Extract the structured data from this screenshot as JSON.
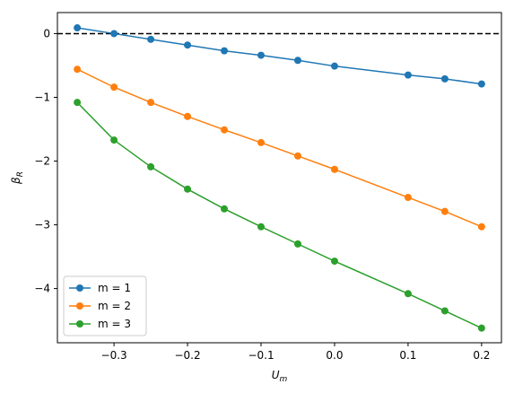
{
  "chart_data": {
    "type": "line",
    "xlabel": "U",
    "xlabel_sub": "m",
    "ylabel": "β",
    "ylabel_sub": "R",
    "xlim": [
      -0.377,
      0.227
    ],
    "ylim": [
      -4.85,
      0.33
    ],
    "xticks": [
      -0.3,
      -0.2,
      -0.1,
      0.0,
      0.1,
      0.2
    ],
    "xtick_labels": [
      "−0.3",
      "−0.2",
      "−0.1",
      "0.0",
      "0.1",
      "0.2"
    ],
    "yticks": [
      0,
      -1,
      -2,
      -3,
      -4
    ],
    "ytick_labels": [
      "0",
      "−1",
      "−2",
      "−3",
      "−4"
    ],
    "reference_line": {
      "y": 0,
      "style": "dashed",
      "color": "#000000"
    },
    "grid": false,
    "legend_position": "lower-left",
    "x": [
      -0.35,
      -0.3,
      -0.25,
      -0.2,
      -0.15,
      -0.1,
      -0.05,
      0.0,
      0.1,
      0.15,
      0.2
    ],
    "series": [
      {
        "name": "m = 1",
        "color": "#1f77b4",
        "values": [
          0.09,
          0.0,
          -0.09,
          -0.18,
          -0.27,
          -0.34,
          -0.42,
          -0.51,
          -0.65,
          -0.71,
          -0.79
        ]
      },
      {
        "name": "m = 2",
        "color": "#ff7f0e",
        "values": [
          -0.56,
          -0.84,
          -1.08,
          -1.3,
          -1.51,
          -1.71,
          -1.92,
          -2.13,
          -2.57,
          -2.79,
          -3.03
        ]
      },
      {
        "name": "m = 3",
        "color": "#2ca02c",
        "values": [
          -1.08,
          -1.67,
          -2.09,
          -2.44,
          -2.75,
          -3.03,
          -3.3,
          -3.57,
          -4.08,
          -4.35,
          -4.62
        ]
      }
    ]
  }
}
